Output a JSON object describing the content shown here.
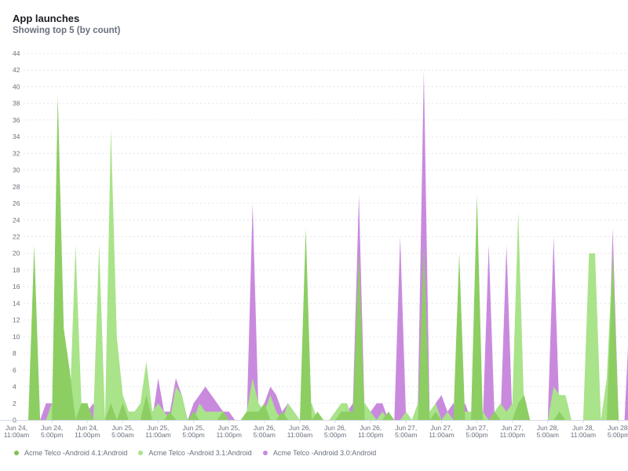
{
  "chart_data": {
    "type": "area",
    "title": "App launches",
    "subtitle": "Showing top 5 (by count)",
    "ylim": [
      0,
      44
    ],
    "yticks": [
      0,
      2,
      4,
      6,
      8,
      10,
      12,
      14,
      16,
      18,
      20,
      22,
      24,
      26,
      28,
      30,
      32,
      34,
      36,
      38,
      40,
      42,
      44
    ],
    "grid": true,
    "legend_position": "bottom-left",
    "xtick_labels": [
      [
        "Jun 24,",
        "11:00am"
      ],
      [
        "Jun 24,",
        "5:00pm"
      ],
      [
        "Jun 24,",
        "11:00pm"
      ],
      [
        "Jun 25,",
        "5:00am"
      ],
      [
        "Jun 25,",
        "11:00am"
      ],
      [
        "Jun 25,",
        "5:00pm"
      ],
      [
        "Jun 25,",
        "11:00pm"
      ],
      [
        "Jun 26,",
        "5:00am"
      ],
      [
        "Jun 26,",
        "11:00am"
      ],
      [
        "Jun 26,",
        "5:00pm"
      ],
      [
        "Jun 26,",
        "11:00pm"
      ],
      [
        "Jun 27,",
        "5:00am"
      ],
      [
        "Jun 27,",
        "11:00am"
      ],
      [
        "Jun 27,",
        "5:00pm"
      ],
      [
        "Jun 27,",
        "11:00pm"
      ],
      [
        "Jun 28,",
        "5:00am"
      ],
      [
        "Jun 28,",
        "11:00am"
      ],
      [
        "Jun 28,",
        "5:00pm"
      ]
    ],
    "series": [
      {
        "name": "Acme Telco -Android 3.0:Android",
        "color": "#c98ade",
        "values": [
          0,
          0,
          0,
          0,
          0,
          2,
          2,
          0,
          0,
          0,
          0,
          1,
          1,
          2,
          0,
          0,
          0,
          0,
          0,
          1,
          1,
          1,
          0,
          0,
          5,
          1,
          1,
          5,
          3,
          0,
          2,
          3,
          4,
          3,
          2,
          1,
          1,
          0,
          0,
          0,
          26,
          1,
          2,
          4,
          3,
          1,
          2,
          1,
          0,
          1,
          0,
          0,
          0,
          0,
          1,
          1,
          1,
          2,
          27,
          0,
          1,
          2,
          2,
          0,
          0,
          22,
          0,
          0,
          2,
          42,
          0,
          2,
          3,
          1,
          2,
          0,
          2,
          0,
          2,
          0,
          21,
          0,
          0,
          21,
          0,
          3,
          0,
          0,
          0,
          0,
          0,
          22,
          0,
          0,
          0,
          0,
          0,
          0,
          0,
          0,
          0,
          23,
          0,
          0,
          15
        ]
      },
      {
        "name": "Acme Telco -Android 3.1:Android",
        "color": "#a9e38a",
        "values": [
          0,
          0,
          0,
          0,
          0,
          0,
          2,
          0,
          0,
          1,
          21,
          2,
          2,
          0,
          21,
          0,
          35,
          10,
          3,
          1,
          1,
          2,
          7,
          1,
          2,
          1,
          0,
          4,
          3,
          0,
          0,
          2,
          1,
          1,
          1,
          1,
          0,
          0,
          0,
          1,
          5,
          2,
          1,
          3,
          1,
          0,
          2,
          1,
          0,
          1,
          2,
          0,
          0,
          0,
          1,
          2,
          2,
          0,
          2,
          2,
          1,
          0,
          1,
          0,
          0,
          0,
          1,
          0,
          2,
          2,
          1,
          2,
          0,
          1,
          0,
          0,
          1,
          1,
          2,
          1,
          0,
          1,
          2,
          1,
          2,
          25,
          1,
          0,
          0,
          0,
          0,
          4,
          3,
          3,
          0,
          0,
          0,
          20,
          20,
          0,
          5,
          20,
          0,
          0,
          0
        ]
      },
      {
        "name": "Acme Telco -Android 4.1:Android",
        "color": "#8cce62",
        "values": [
          0,
          0,
          0,
          21,
          0,
          0,
          0,
          39,
          11,
          6,
          0,
          2,
          2,
          0,
          0,
          0,
          2,
          0,
          2,
          0,
          0,
          0,
          3,
          0,
          0,
          0,
          1,
          0,
          0,
          0,
          1,
          0,
          0,
          0,
          0,
          1,
          0,
          0,
          0,
          1,
          1,
          1,
          2,
          0,
          0,
          1,
          0,
          0,
          0,
          23,
          0,
          1,
          0,
          0,
          0,
          1,
          1,
          1,
          20,
          0,
          0,
          0,
          0,
          1,
          0,
          0,
          0,
          0,
          0,
          21,
          0,
          1,
          0,
          0,
          0,
          20,
          0,
          0,
          27,
          0,
          0,
          1,
          0,
          0,
          0,
          2,
          3,
          0,
          0,
          0,
          0,
          0,
          1,
          0,
          0,
          0,
          0,
          0,
          0,
          0,
          0,
          20,
          0,
          0,
          0
        ]
      }
    ],
    "legend": [
      {
        "label": "Acme Telco -Android 4.1:Android",
        "color": "#7fc24f"
      },
      {
        "label": "Acme Telco -Android 3.1:Android",
        "color": "#a9e38a"
      },
      {
        "label": "Acme Telco -Android 3.0:Android",
        "color": "#c98ade"
      }
    ]
  }
}
